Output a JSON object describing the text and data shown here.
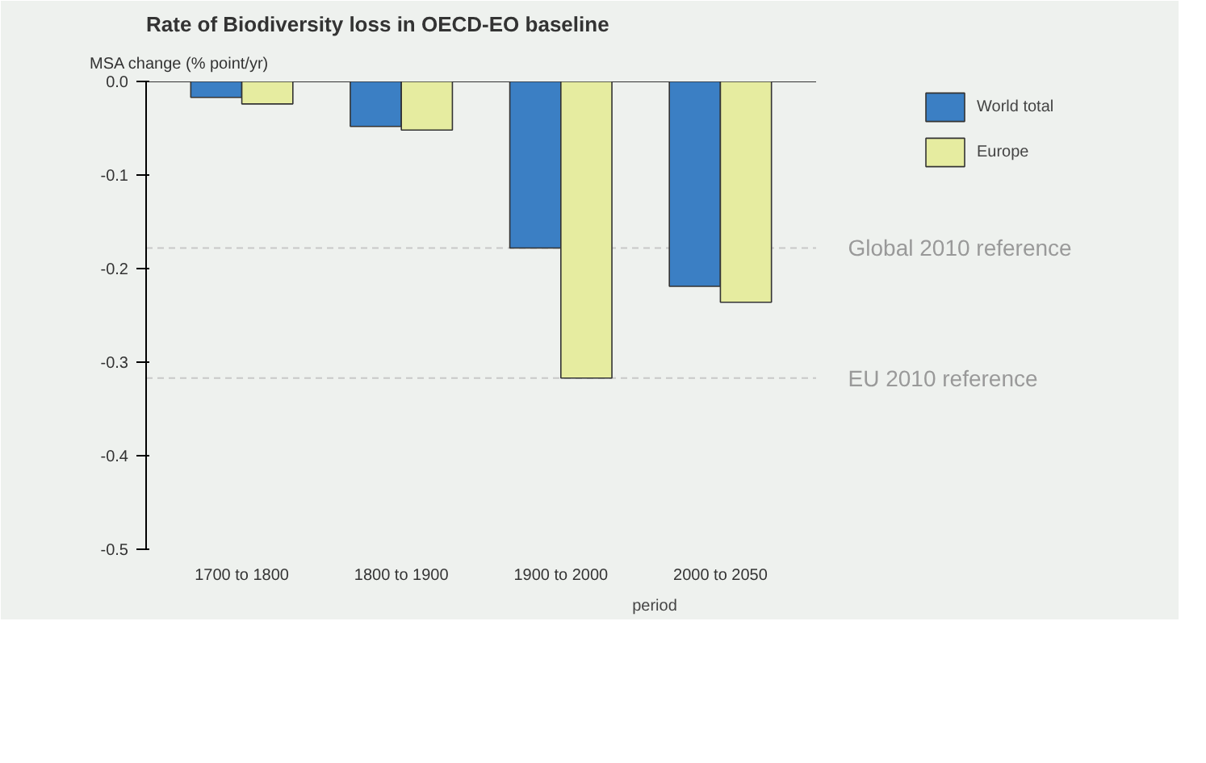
{
  "chart_data": {
    "type": "bar",
    "title": "Rate of Biodiversity loss in OECD-EO baseline",
    "ylabel": "MSA change (% point/yr)",
    "xlabel": "period",
    "categories": [
      "1700 to 1800",
      "1800 to 1900",
      "1900 to 2000",
      "2000 to 2050"
    ],
    "series": [
      {
        "name": "World total",
        "color": "#3b7fc4",
        "values": [
          -0.017,
          -0.048,
          -0.178,
          -0.219
        ]
      },
      {
        "name": "Europe",
        "color": "#e6eca0",
        "values": [
          -0.024,
          -0.052,
          -0.317,
          -0.236
        ]
      }
    ],
    "ylim": [
      -0.5,
      0
    ],
    "yticks": [
      {
        "value": 0,
        "label": "0.0"
      },
      -0.1,
      -0.2,
      -0.3,
      -0.4,
      -0.5
    ],
    "ref_lines": [
      {
        "axis": "y",
        "value": -0.178,
        "label": "Global 2010 reference",
        "color": "#c8c8c8",
        "line_style": "dashed"
      },
      {
        "axis": "y",
        "value": -0.317,
        "label": "EU 2010 reference",
        "color": "#c8c8c8",
        "line_style": "dashed"
      }
    ],
    "grid": false,
    "legend": "top right"
  }
}
